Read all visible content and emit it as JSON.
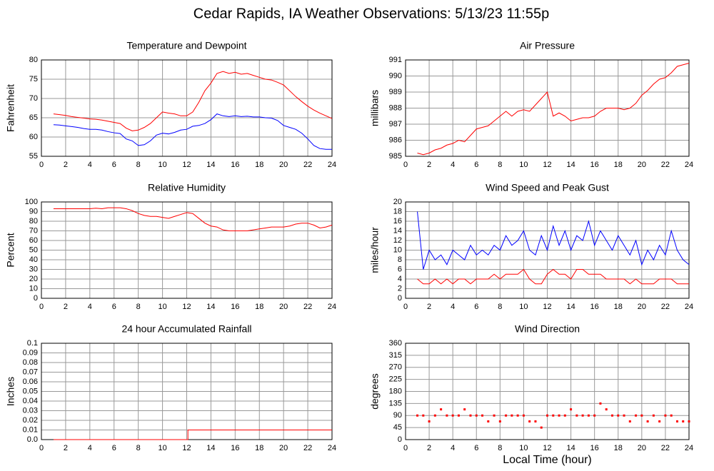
{
  "title": "Cedar Rapids, IA Weather Observations: 5/13/23 11:55p",
  "chart_data": [
    {
      "type": "line",
      "title": "Temperature and Dewpoint",
      "ylabel": "Fahrenheit",
      "x": [
        1,
        1.5,
        2,
        2.5,
        3,
        3.5,
        4,
        4.5,
        5,
        5.5,
        6,
        6.5,
        7,
        7.5,
        8,
        8.5,
        9,
        9.5,
        10,
        10.5,
        11,
        11.5,
        12,
        12.5,
        13,
        13.5,
        14,
        14.5,
        15,
        15.5,
        16,
        16.5,
        17,
        17.5,
        18,
        18.5,
        19,
        19.5,
        20,
        20.5,
        21,
        21.5,
        22,
        22.5,
        23,
        23.5,
        24
      ],
      "series": [
        {
          "color": "#ff0000",
          "values": [
            66,
            65.8,
            65.6,
            65.3,
            65.1,
            64.9,
            64.7,
            64.6,
            64.4,
            64.1,
            63.8,
            63.5,
            62.3,
            61.6,
            61.8,
            62.5,
            63.5,
            65,
            66.5,
            66.2,
            66,
            65.5,
            65.5,
            66.5,
            69,
            72,
            74,
            76.5,
            77,
            76.5,
            76.8,
            76.3,
            76.5,
            76,
            75.5,
            75,
            74.8,
            74.2,
            73.5,
            72,
            70.5,
            69.2,
            68,
            67,
            66.2,
            65.5,
            64.8
          ]
        },
        {
          "color": "#0000ff",
          "values": [
            63.2,
            63.1,
            62.9,
            62.7,
            62.5,
            62.2,
            62,
            62,
            61.8,
            61.4,
            61.1,
            60.9,
            59.5,
            59,
            57.8,
            58,
            59,
            60.5,
            61,
            60.8,
            61.2,
            61.8,
            62,
            62.8,
            63,
            63.5,
            64.5,
            66,
            65.5,
            65.3,
            65.5,
            65.3,
            65.4,
            65.2,
            65.2,
            65,
            64.9,
            64.3,
            63,
            62.5,
            62,
            61,
            59.5,
            57.8,
            57,
            56.8,
            56.8
          ]
        }
      ],
      "xlim": [
        0,
        24
      ],
      "xticks": [
        0,
        2,
        4,
        6,
        8,
        10,
        12,
        14,
        16,
        18,
        20,
        22,
        24
      ],
      "ylim": [
        55,
        80
      ],
      "yticks": [
        55,
        60,
        65,
        70,
        75,
        80
      ],
      "grid": true
    },
    {
      "type": "line",
      "title": "Air Pressure",
      "ylabel": "millibars",
      "x": [
        1,
        1.5,
        2,
        2.5,
        3,
        3.5,
        4,
        4.5,
        5,
        5.5,
        6,
        6.5,
        7,
        7.5,
        8,
        8.5,
        9,
        9.5,
        10,
        10.5,
        11,
        11.5,
        12,
        12.5,
        13,
        13.5,
        14,
        14.5,
        15,
        15.5,
        16,
        16.5,
        17,
        17.5,
        18,
        18.5,
        19,
        19.5,
        20,
        20.5,
        21,
        21.5,
        22,
        22.5,
        23,
        23.5,
        24
      ],
      "series": [
        {
          "color": "#ff0000",
          "values": [
            985.2,
            985.1,
            985.2,
            985.4,
            985.5,
            985.7,
            985.8,
            986,
            985.9,
            986.3,
            986.7,
            986.8,
            986.9,
            987.2,
            987.5,
            987.8,
            987.5,
            987.8,
            987.9,
            987.8,
            988.2,
            988.6,
            989,
            987.5,
            987.7,
            987.5,
            987.2,
            987.3,
            987.4,
            987.4,
            987.5,
            987.8,
            988,
            988,
            988,
            987.9,
            988,
            988.3,
            988.8,
            989.1,
            989.5,
            989.8,
            989.9,
            990.2,
            990.6,
            990.7,
            990.8
          ]
        }
      ],
      "xlim": [
        0,
        24
      ],
      "xticks": [
        0,
        2,
        4,
        6,
        8,
        10,
        12,
        14,
        16,
        18,
        20,
        22,
        24
      ],
      "ylim": [
        985,
        991
      ],
      "yticks": [
        985,
        986,
        987,
        988,
        989,
        990,
        991
      ],
      "grid": true
    },
    {
      "type": "line",
      "title": "Relative Humidity",
      "ylabel": "Percent",
      "x": [
        1,
        1.5,
        2,
        2.5,
        3,
        3.5,
        4,
        4.5,
        5,
        5.5,
        6,
        6.5,
        7,
        7.5,
        8,
        8.5,
        9,
        9.5,
        10,
        10.5,
        11,
        11.5,
        12,
        12.5,
        13,
        13.5,
        14,
        14.5,
        15,
        15.5,
        16,
        16.5,
        17,
        17.5,
        18,
        18.5,
        19,
        19.5,
        20,
        20.5,
        21,
        21.5,
        22,
        22.5,
        23,
        23.5,
        24
      ],
      "series": [
        {
          "color": "#ff0000",
          "values": [
            93,
            93,
            93,
            93,
            93,
            93,
            93,
            93.5,
            93,
            94,
            94,
            94,
            93,
            91,
            88,
            86,
            85,
            85,
            84,
            83,
            85,
            87,
            89,
            88,
            83,
            78,
            75,
            74,
            71,
            70,
            70,
            70,
            70,
            71,
            72,
            73,
            74,
            74,
            74,
            75,
            77,
            78,
            78,
            76,
            73,
            74,
            76
          ]
        }
      ],
      "xlim": [
        0,
        24
      ],
      "xticks": [
        0,
        2,
        4,
        6,
        8,
        10,
        12,
        14,
        16,
        18,
        20,
        22,
        24
      ],
      "ylim": [
        0,
        100
      ],
      "yticks": [
        0,
        10,
        20,
        30,
        40,
        50,
        60,
        70,
        80,
        90,
        100
      ],
      "grid": true
    },
    {
      "type": "line",
      "title": "Wind Speed and Peak Gust",
      "ylabel": "miles/hour",
      "x": [
        1,
        1.5,
        2,
        2.5,
        3,
        3.5,
        4,
        4.5,
        5,
        5.5,
        6,
        6.5,
        7,
        7.5,
        8,
        8.5,
        9,
        9.5,
        10,
        10.5,
        11,
        11.5,
        12,
        12.5,
        13,
        13.5,
        14,
        14.5,
        15,
        15.5,
        16,
        16.5,
        17,
        17.5,
        18,
        18.5,
        19,
        19.5,
        20,
        20.5,
        21,
        21.5,
        22,
        22.5,
        23,
        23.5,
        24
      ],
      "series": [
        {
          "color": "#0000ff",
          "values": [
            18,
            6,
            10,
            8,
            9,
            7,
            10,
            9,
            8,
            11,
            9,
            10,
            9,
            11,
            10,
            13,
            11,
            12,
            14,
            10,
            9,
            13,
            10,
            15,
            11,
            14,
            10,
            13,
            12,
            16,
            11,
            14,
            12,
            10,
            13,
            11,
            9,
            12,
            7,
            10,
            8,
            11,
            9,
            14,
            10,
            8,
            7
          ]
        },
        {
          "color": "#ff0000",
          "values": [
            4,
            3,
            3,
            4,
            3,
            4,
            3,
            4,
            4,
            3,
            4,
            4,
            4,
            5,
            4,
            5,
            5,
            5,
            6,
            4,
            3,
            3,
            5,
            6,
            5,
            5,
            4,
            6,
            6,
            5,
            5,
            5,
            4,
            4,
            4,
            4,
            3,
            4,
            3,
            3,
            3,
            4,
            4,
            4,
            3,
            3,
            3
          ]
        }
      ],
      "xlim": [
        0,
        24
      ],
      "xticks": [
        0,
        2,
        4,
        6,
        8,
        10,
        12,
        14,
        16,
        18,
        20,
        22,
        24
      ],
      "ylim": [
        0,
        20
      ],
      "yticks": [
        0,
        2,
        4,
        6,
        8,
        10,
        12,
        14,
        16,
        18,
        20
      ],
      "grid": true
    },
    {
      "type": "line",
      "title": "24 hour Accumulated Rainfall",
      "ylabel": "Inches",
      "x": [
        1,
        12.1,
        12.1,
        24
      ],
      "series": [
        {
          "color": "#ff0000",
          "values": [
            0,
            0,
            0.01,
            0.01
          ]
        }
      ],
      "xlim": [
        0,
        24
      ],
      "xticks": [
        0,
        2,
        4,
        6,
        8,
        10,
        12,
        14,
        16,
        18,
        20,
        22,
        24
      ],
      "ylim": [
        0,
        0.1
      ],
      "yticks": [
        {
          "value": 0,
          "label": "0.0"
        },
        0.01,
        0.02,
        0.03,
        0.04,
        0.05,
        0.06,
        0.07,
        0.08,
        0.09,
        0.1
      ],
      "grid": true
    },
    {
      "type": "scatter",
      "title": "Wind Direction",
      "ylabel": "degrees",
      "xlabel": "Local Time (hour)",
      "x": [
        1,
        1.5,
        2,
        2.5,
        3,
        3.5,
        4,
        4.5,
        5,
        5.5,
        6,
        6.5,
        7,
        7.5,
        8,
        8.5,
        9,
        9.5,
        10,
        10.5,
        11,
        11.5,
        12,
        12.5,
        13,
        13.5,
        14,
        14.5,
        15,
        15.5,
        16,
        16.5,
        17,
        17.5,
        18,
        18.5,
        19,
        19.5,
        20,
        20.5,
        21,
        21.5,
        22,
        22.5,
        23,
        23.5,
        24
      ],
      "series": [
        {
          "color": "#ff0000",
          "values": [
            90,
            90,
            68,
            90,
            113,
            90,
            90,
            90,
            113,
            90,
            90,
            90,
            68,
            90,
            68,
            90,
            90,
            90,
            90,
            68,
            68,
            45,
            90,
            90,
            90,
            90,
            113,
            90,
            90,
            90,
            90,
            135,
            113,
            90,
            90,
            90,
            68,
            90,
            90,
            68,
            90,
            68,
            90,
            90,
            68,
            68,
            68
          ]
        }
      ],
      "xlim": [
        0,
        24
      ],
      "xticks": [
        0,
        2,
        4,
        6,
        8,
        10,
        12,
        14,
        16,
        18,
        20,
        22,
        24
      ],
      "ylim": [
        0,
        360
      ],
      "yticks": [
        0,
        45,
        90,
        135,
        180,
        225,
        270,
        315,
        360
      ],
      "grid": true
    }
  ]
}
